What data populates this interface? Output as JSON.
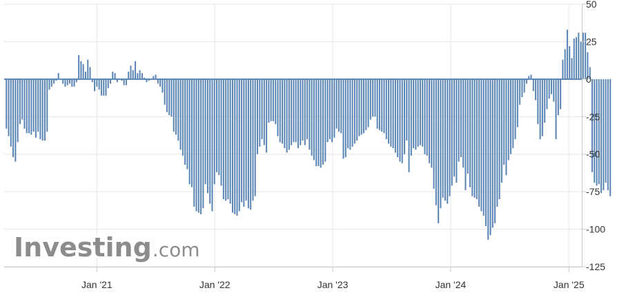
{
  "watermark": {
    "brand": "Investing",
    "suffix": ".com"
  },
  "colors": {
    "bar": "#5b85b4",
    "grid": "#e6e6e6",
    "axis": "#c8c8c8",
    "text": "#333333",
    "watermark": "#8c8c8c"
  },
  "chart_data": {
    "type": "bar",
    "xlim": [
      "2020-03-20",
      "2025-02-10"
    ],
    "ylim": [
      -125,
      50
    ],
    "yticks": [
      50,
      25,
      0,
      -25,
      -50,
      -75,
      -100,
      -125
    ],
    "xticks": [
      {
        "date": "2021-01-01",
        "label": "Jan '21"
      },
      {
        "date": "2022-01-01",
        "label": "Jan '22"
      },
      {
        "date": "2023-01-01",
        "label": "Jan '23"
      },
      {
        "date": "2024-01-01",
        "label": "Jan '24"
      },
      {
        "date": "2025-01-01",
        "label": "Jan '25"
      }
    ],
    "grid": true,
    "start_date": "2020-03-27",
    "interval_days": 7,
    "values": [
      -33,
      -38,
      -45,
      -52,
      -55,
      -42,
      -30,
      -27,
      -33,
      -36,
      -36,
      -37,
      -35,
      -39,
      -35,
      -40,
      -41,
      -41,
      -35,
      -7,
      -5,
      -3,
      -1,
      4,
      0,
      -3,
      -5,
      -4,
      -3,
      -5,
      -5,
      -2,
      16,
      12,
      10,
      5,
      13,
      8,
      -2,
      -8,
      -5,
      -7,
      -11,
      -11,
      -11,
      -6,
      -3,
      5,
      4,
      -2,
      0,
      -1,
      -4,
      -4,
      5,
      9,
      6,
      12,
      4,
      6,
      4,
      1,
      -2,
      -1,
      0,
      2,
      3,
      -3,
      -5,
      -9,
      -17,
      -22,
      -24,
      -25,
      -35,
      -37,
      -41,
      -47,
      -51,
      -57,
      -60,
      -70,
      -72,
      -85,
      -88,
      -89,
      -90,
      -86,
      -70,
      -76,
      -83,
      -88,
      -70,
      -62,
      -64,
      -71,
      -80,
      -81,
      -80,
      -83,
      -89,
      -90,
      -91,
      -88,
      -82,
      -85,
      -81,
      -86,
      -87,
      -81,
      -78,
      -50,
      -45,
      -40,
      -44,
      -49,
      -29,
      -28,
      -28,
      -30,
      -38,
      -42,
      -43,
      -46,
      -49,
      -47,
      -44,
      -42,
      -42,
      -46,
      -44,
      -41,
      -44,
      -40,
      -47,
      -51,
      -54,
      -58,
      -58,
      -59,
      -57,
      -55,
      -42,
      -40,
      -42,
      -39,
      -33,
      -35,
      -36,
      -53,
      -52,
      -46,
      -47,
      -45,
      -43,
      -41,
      -38,
      -37,
      -36,
      -34,
      -32,
      -27,
      -25,
      -25,
      -33,
      -34,
      -35,
      -36,
      -40,
      -43,
      -45,
      -46,
      -49,
      -52,
      -55,
      -56,
      -50,
      -41,
      -62,
      -51,
      -46,
      -47,
      -45,
      -44,
      -45,
      -50,
      -51,
      -56,
      -59,
      -73,
      -84,
      -96,
      -86,
      -79,
      -81,
      -83,
      -78,
      -71,
      -65,
      -69,
      -55,
      -52,
      -59,
      -74,
      -63,
      -72,
      -78,
      -79,
      -80,
      -85,
      -88,
      -91,
      -98,
      -107,
      -104,
      -99,
      -96,
      -85,
      -80,
      -69,
      -57,
      -64,
      -54,
      -50,
      -46,
      -40,
      -32,
      -17,
      -12,
      -9,
      -3,
      2,
      3,
      -8,
      -14,
      -30,
      -40,
      -38,
      -29,
      -20,
      -13,
      -10,
      -15,
      -40,
      -24,
      -20,
      13,
      20,
      33,
      22,
      14,
      27,
      28,
      31,
      25,
      31,
      31,
      18,
      8,
      -62,
      -69,
      -71,
      -70,
      -76,
      -74,
      -69,
      -74,
      -78
    ]
  }
}
